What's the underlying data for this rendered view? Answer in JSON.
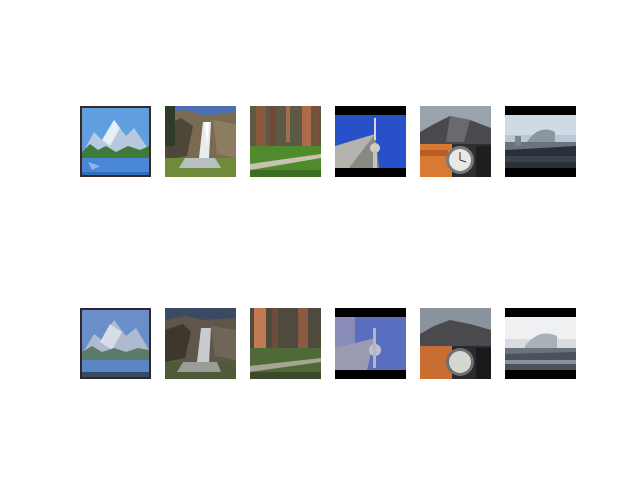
{
  "rows": [
    {
      "images": [
        {
          "subject": "painted-mountain-lake"
        },
        {
          "subject": "waterfall-cliffs"
        },
        {
          "subject": "forest-trees-meadow"
        },
        {
          "subject": "tv-tower-blue-sky"
        },
        {
          "subject": "wristwatch-half-dome"
        },
        {
          "subject": "city-waterfront"
        }
      ]
    },
    {
      "images": [
        {
          "subject": "painted-mountain-lake"
        },
        {
          "subject": "waterfall-cliffs"
        },
        {
          "subject": "forest-trees-meadow"
        },
        {
          "subject": "tv-tower-blue-sky"
        },
        {
          "subject": "wristwatch-half-dome"
        },
        {
          "subject": "city-waterfront"
        }
      ]
    }
  ]
}
